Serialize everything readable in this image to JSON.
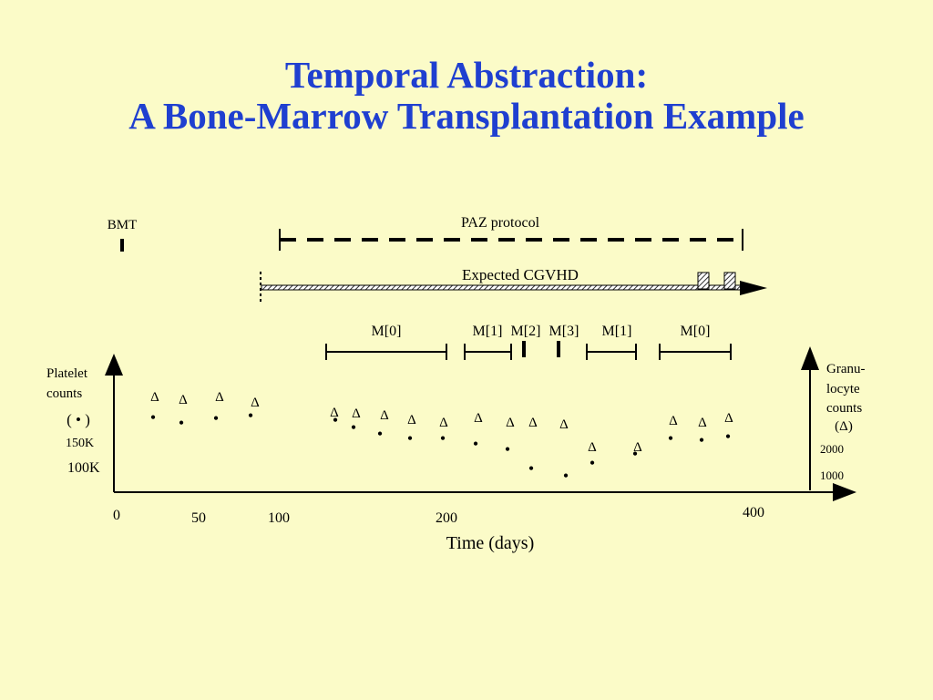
{
  "slide": {
    "title_line1": "Temporal Abstraction:",
    "title_line2": "A Bone-Marrow Transplantation Example"
  },
  "timeline": {
    "bmt_label": "BMT",
    "paz_label": "PAZ protocol",
    "cgvhd_label": "Expected CGVHD",
    "m_labels": [
      "M[0]",
      "M[1]",
      "M[2]",
      "M[3]",
      "M[1]",
      "M[0]"
    ]
  },
  "chart_data": {
    "type": "scatter",
    "xlabel": "Time (days)",
    "x_ticks": [
      "0",
      "50",
      "100",
      "200",
      "400"
    ],
    "left_axis": {
      "label_line1": "Platelet",
      "label_line2": "counts",
      "symbol": "( • )",
      "ticks": [
        "150K",
        "100K"
      ]
    },
    "right_axis": {
      "label_line1": "Granu-",
      "label_line2": "locyte",
      "label_line3": "counts",
      "symbol": "(Δ)",
      "ticks": [
        "2000",
        "1000"
      ]
    },
    "series": [
      {
        "marker": "•",
        "points": 20
      },
      {
        "marker": "Δ",
        "points": 20
      }
    ]
  }
}
